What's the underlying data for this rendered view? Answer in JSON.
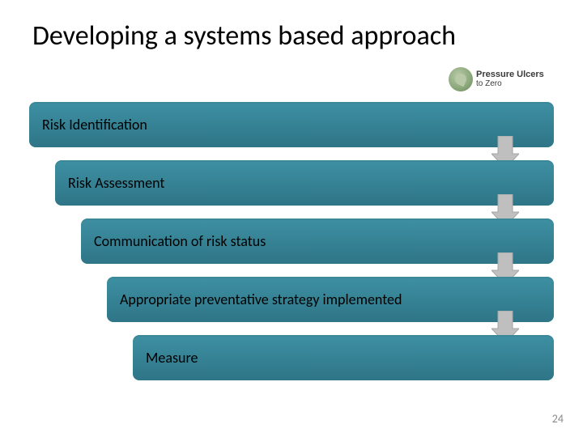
{
  "title": {
    "text": "Developing a systems based approach",
    "fontsize": 34,
    "color": "#000000"
  },
  "logo": {
    "line1": "Pressure Ulcers",
    "line2": "to Zero",
    "text_color": "#3a3a3a"
  },
  "page_number": "24",
  "background_color": "#ffffff",
  "diagram": {
    "type": "flowchart",
    "step_height": 56,
    "step_gap": 16,
    "left_indent_per_step": 32,
    "border_radius": 8,
    "label_fontsize": 18,
    "label_color": "#000000",
    "arrow": {
      "fill": "#bfbfbf",
      "stroke": "#a6a6a6",
      "width": 34,
      "shaft_width": 18,
      "height": 40
    },
    "steps": [
      {
        "label": "Risk Identification",
        "fill_top": "#3e90a3",
        "fill_bottom": "#2e7587",
        "arrow_after": true
      },
      {
        "label": "Risk Assessment",
        "fill_top": "#3e90a3",
        "fill_bottom": "#2e7587",
        "arrow_after": true
      },
      {
        "label": "Communication of risk status",
        "fill_top": "#3e90a3",
        "fill_bottom": "#2e7587",
        "arrow_after": true
      },
      {
        "label": "Appropriate preventative strategy implemented",
        "fill_top": "#3e90a3",
        "fill_bottom": "#2e7587",
        "arrow_after": true
      },
      {
        "label": "Measure",
        "fill_top": "#3e90a3",
        "fill_bottom": "#2e7587",
        "arrow_after": false
      }
    ]
  }
}
